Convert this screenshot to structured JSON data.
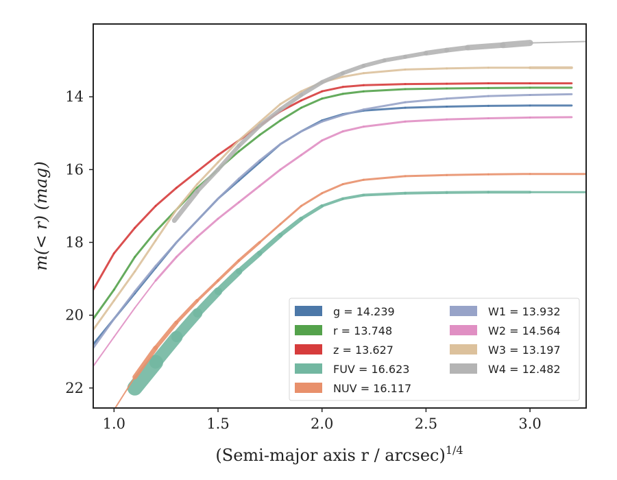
{
  "chart_data": {
    "type": "line",
    "xlabel": "(Semi-major axis r / arcsec)",
    "xlabel_sup": "1/4",
    "ylabel": "m(< r) (mag)",
    "xlim": [
      0.9,
      3.27
    ],
    "ylim": [
      22.55,
      12.0
    ],
    "y_inverted": true,
    "xticks": [
      1.0,
      1.5,
      2.0,
      2.5,
      3.0
    ],
    "xtick_labels": [
      "1.0",
      "1.5",
      "2.0",
      "2.5",
      "3.0"
    ],
    "yticks": [
      14,
      16,
      18,
      20,
      22
    ],
    "ytick_labels": [
      "14",
      "16",
      "18",
      "20",
      "22"
    ],
    "grid": false,
    "legend_position": "bottom-right",
    "legend_columns": 2,
    "series": [
      {
        "name": "g = 14.239",
        "color": "#4c78a8",
        "x": [
          0.9,
          1.0,
          1.1,
          1.2,
          1.3,
          1.4,
          1.5,
          1.6,
          1.7,
          1.8,
          1.9,
          2.0,
          2.1,
          2.2,
          2.4,
          2.6,
          2.8,
          3.0,
          3.2
        ],
        "y": [
          20.8,
          20.1,
          19.4,
          18.7,
          18.0,
          17.4,
          16.8,
          16.3,
          15.8,
          15.3,
          14.95,
          14.65,
          14.48,
          14.38,
          14.3,
          14.27,
          14.25,
          14.24,
          14.24
        ],
        "width": [
          3,
          3,
          3,
          3,
          3,
          3,
          3,
          3,
          3,
          3,
          3,
          3,
          3,
          3,
          3,
          3,
          3,
          3,
          3
        ]
      },
      {
        "name": "r = 13.748",
        "color": "#54a24b",
        "x": [
          0.9,
          1.0,
          1.1,
          1.2,
          1.3,
          1.4,
          1.5,
          1.6,
          1.7,
          1.8,
          1.9,
          2.0,
          2.1,
          2.2,
          2.4,
          2.6,
          2.8,
          3.0,
          3.2
        ],
        "y": [
          20.1,
          19.3,
          18.4,
          17.7,
          17.1,
          16.5,
          16.0,
          15.5,
          15.05,
          14.65,
          14.3,
          14.05,
          13.92,
          13.85,
          13.79,
          13.77,
          13.76,
          13.75,
          13.75
        ],
        "width": [
          3,
          3,
          3,
          3,
          3,
          3,
          3,
          3,
          3,
          3,
          3,
          3,
          3,
          3,
          3,
          3,
          3,
          3,
          3
        ]
      },
      {
        "name": "z = 13.627",
        "color": "#d63c3c",
        "x": [
          0.9,
          1.0,
          1.1,
          1.2,
          1.3,
          1.4,
          1.5,
          1.6,
          1.7,
          1.8,
          1.9,
          2.0,
          2.1,
          2.2,
          2.4,
          2.6,
          2.8,
          3.0,
          3.2
        ],
        "y": [
          19.3,
          18.3,
          17.6,
          17.0,
          16.5,
          16.05,
          15.6,
          15.2,
          14.8,
          14.4,
          14.1,
          13.85,
          13.73,
          13.68,
          13.65,
          13.64,
          13.63,
          13.63,
          13.63
        ],
        "width": [
          3,
          3,
          3,
          3,
          3,
          3,
          3,
          3,
          3,
          3,
          3,
          3,
          3,
          3,
          3,
          3,
          3,
          3,
          3
        ]
      },
      {
        "name": "FUV = 16.623",
        "color": "#72b7a1",
        "x": [
          1.1,
          1.2,
          1.3,
          1.4,
          1.5,
          1.6,
          1.7,
          1.8,
          1.9,
          2.0,
          2.1,
          2.2,
          2.4,
          2.6,
          2.8,
          3.0,
          3.27
        ],
        "y": [
          22.0,
          21.3,
          20.6,
          19.95,
          19.35,
          18.8,
          18.3,
          17.8,
          17.35,
          17.0,
          16.8,
          16.7,
          16.65,
          16.63,
          16.62,
          16.62,
          16.62
        ],
        "width": [
          22,
          18,
          15,
          12,
          10,
          8,
          7,
          6,
          5,
          4,
          4,
          4,
          4,
          4,
          4,
          3,
          2
        ]
      },
      {
        "name": "NUV = 16.117",
        "color": "#e8906b",
        "x": [
          1.0,
          1.1,
          1.2,
          1.3,
          1.4,
          1.5,
          1.6,
          1.7,
          1.8,
          1.9,
          2.0,
          2.1,
          2.2,
          2.4,
          2.6,
          2.8,
          3.0,
          3.27
        ],
        "y": [
          22.6,
          21.7,
          20.9,
          20.2,
          19.6,
          19.05,
          18.5,
          18.0,
          17.5,
          17.0,
          16.65,
          16.4,
          16.28,
          16.18,
          16.15,
          16.13,
          16.12,
          16.12
        ],
        "width": [
          2,
          7,
          6,
          5,
          4,
          4,
          4,
          3,
          3,
          3,
          3,
          3,
          3,
          3,
          3,
          3,
          3,
          2
        ]
      },
      {
        "name": "W1 = 13.932",
        "color": "#97a3c8",
        "x": [
          0.9,
          1.0,
          1.1,
          1.2,
          1.3,
          1.4,
          1.5,
          1.6,
          1.7,
          1.8,
          1.9,
          2.0,
          2.1,
          2.2,
          2.4,
          2.6,
          2.8,
          3.0,
          3.2
        ],
        "y": [
          20.9,
          20.1,
          19.35,
          18.65,
          18.0,
          17.4,
          16.8,
          16.25,
          15.75,
          15.3,
          14.95,
          14.68,
          14.5,
          14.35,
          14.15,
          14.05,
          13.98,
          13.95,
          13.93
        ],
        "width": [
          3,
          3,
          3,
          3,
          3,
          3,
          3,
          3,
          3,
          3,
          3,
          3,
          3,
          3,
          3,
          3,
          3,
          3,
          3
        ]
      },
      {
        "name": "W2 = 14.564",
        "color": "#e08fc3",
        "x": [
          0.9,
          1.0,
          1.1,
          1.2,
          1.3,
          1.4,
          1.5,
          1.6,
          1.7,
          1.8,
          1.9,
          2.0,
          2.1,
          2.2,
          2.4,
          2.6,
          2.8,
          3.0,
          3.2
        ],
        "y": [
          21.4,
          20.6,
          19.8,
          19.05,
          18.4,
          17.85,
          17.35,
          16.9,
          16.45,
          16.0,
          15.6,
          15.2,
          14.95,
          14.82,
          14.68,
          14.62,
          14.59,
          14.57,
          14.56
        ],
        "width": [
          2,
          2,
          2,
          3,
          3,
          3,
          3,
          3,
          3,
          3,
          3,
          3,
          3,
          3,
          3,
          3,
          3,
          3,
          2
        ]
      },
      {
        "name": "W3 = 13.197",
        "color": "#dcc19c",
        "x": [
          0.9,
          1.0,
          1.1,
          1.2,
          1.3,
          1.4,
          1.5,
          1.6,
          1.7,
          1.8,
          1.9,
          2.0,
          2.1,
          2.2,
          2.4,
          2.6,
          2.8,
          3.0,
          3.2
        ],
        "y": [
          20.4,
          19.6,
          18.8,
          17.95,
          17.1,
          16.4,
          15.8,
          15.2,
          14.7,
          14.2,
          13.85,
          13.6,
          13.45,
          13.35,
          13.25,
          13.22,
          13.2,
          13.2,
          13.2
        ],
        "width": [
          3,
          3,
          3,
          3,
          3,
          3,
          3,
          3,
          3,
          3,
          3,
          3,
          3,
          3,
          3,
          3,
          3,
          4,
          4
        ]
      },
      {
        "name": "W4 = 12.482",
        "color": "#b4b4b4",
        "x": [
          1.29,
          1.4,
          1.5,
          1.6,
          1.7,
          1.8,
          1.9,
          2.0,
          2.1,
          2.2,
          2.3,
          2.4,
          2.5,
          2.6,
          2.7,
          2.87,
          3.0,
          3.27
        ],
        "y": [
          17.4,
          16.6,
          16.0,
          15.35,
          14.8,
          14.35,
          13.95,
          13.6,
          13.35,
          13.15,
          13.0,
          12.9,
          12.8,
          12.72,
          12.65,
          12.58,
          12.52,
          12.48
        ],
        "width": [
          7,
          6,
          6,
          6,
          6,
          6,
          6,
          6,
          6,
          6,
          6,
          6,
          7,
          7,
          8,
          9,
          2,
          2
        ]
      }
    ]
  }
}
